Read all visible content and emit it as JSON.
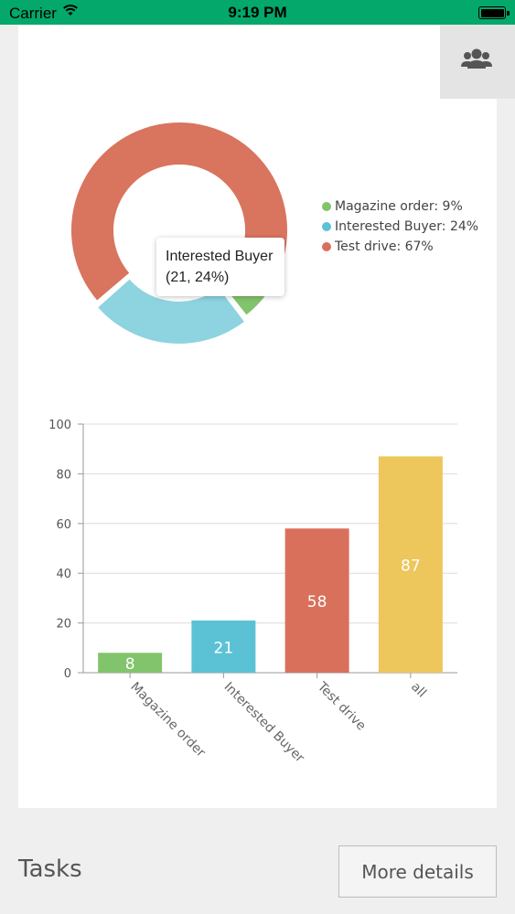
{
  "status_bar": {
    "carrier": "Carrier",
    "time": "9:19 PM"
  },
  "header": {
    "group_icon": "group-icon"
  },
  "donut": {
    "legend": [
      {
        "label": "Magazine order: 9%",
        "color": "#82c46c"
      },
      {
        "label": "Interested Buyer: 24%",
        "color": "#5bc2d6"
      },
      {
        "label": "Test drive: 67%",
        "color": "#d9705c"
      }
    ],
    "tooltip": {
      "title": "Interested Buyer",
      "value": "(21, 24%)"
    }
  },
  "chart_data": [
    {
      "type": "pie",
      "donut": true,
      "labels": [
        "Magazine order",
        "Interested Buyer",
        "Test drive"
      ],
      "values": [
        8,
        21,
        58
      ],
      "percents": [
        9,
        24,
        67
      ],
      "colors": [
        "#82c46c",
        "#8ed3e0",
        "#d9745f"
      ],
      "highlighted": "Interested Buyer",
      "legend_position": "right"
    },
    {
      "type": "bar",
      "categories": [
        "Magazine order",
        "Interested Buyer",
        "Test drive",
        "all"
      ],
      "values": [
        8,
        21,
        58,
        87
      ],
      "colors": [
        "#82c46c",
        "#5bc2d6",
        "#d9705c",
        "#edc65c"
      ],
      "ylim": [
        0,
        100
      ],
      "yticks": [
        0,
        20,
        40,
        60,
        80,
        100
      ],
      "grid": true
    }
  ],
  "footer": {
    "tasks_title": "Tasks",
    "more_details": "More details"
  }
}
